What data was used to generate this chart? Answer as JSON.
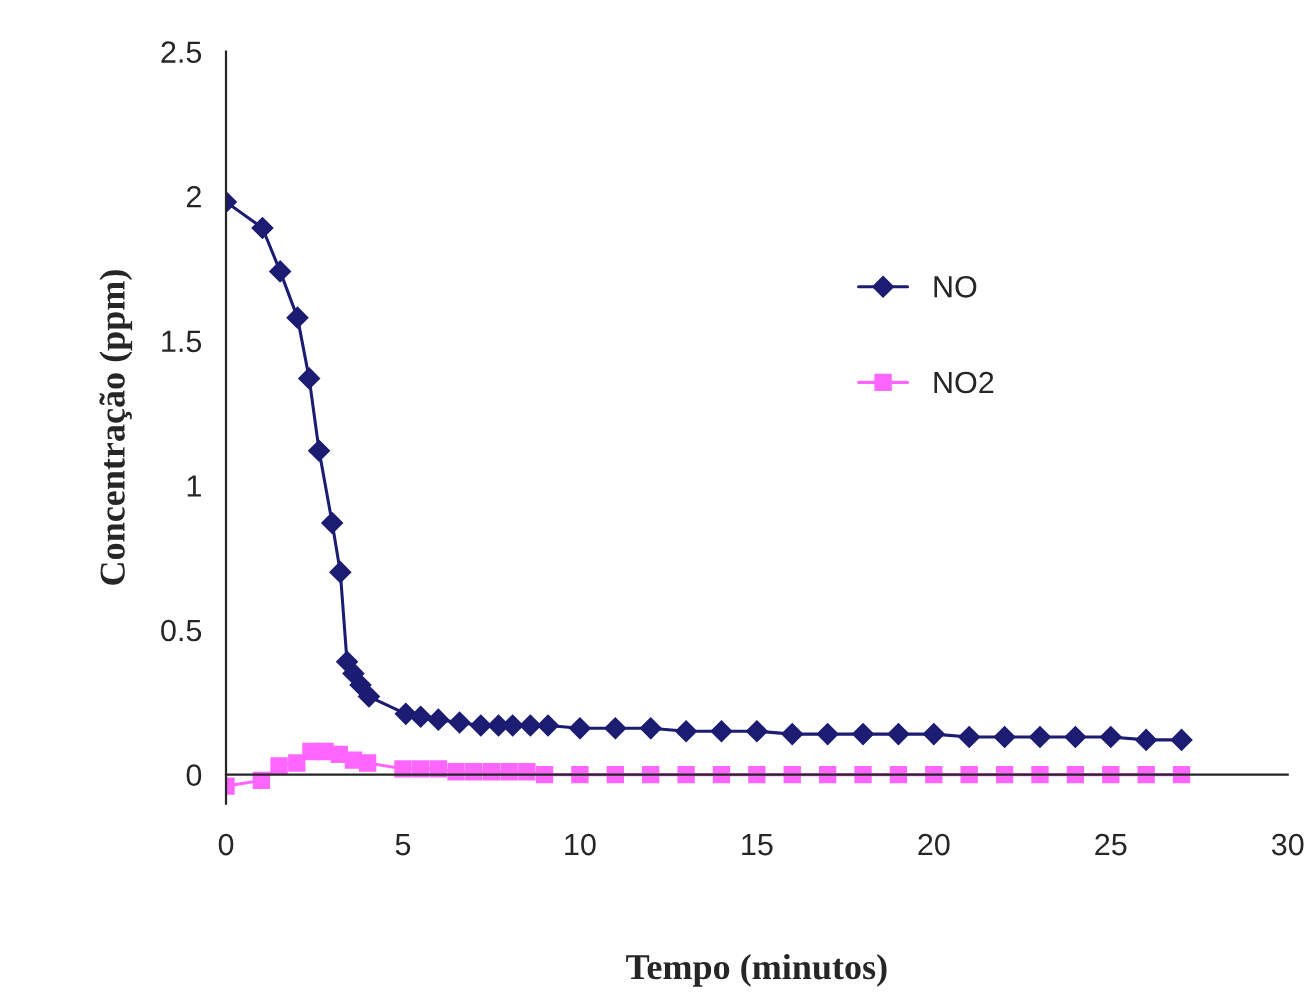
{
  "chart_data": {
    "type": "line",
    "xlabel": "Tempo (minutos)",
    "ylabel": "Concentração (ppm)",
    "xlim": [
      0,
      30
    ],
    "xticks": [
      0,
      5,
      10,
      15,
      20,
      25,
      30
    ],
    "ylim": [
      -0.1,
      2.5
    ],
    "yticks": [
      0,
      0.5,
      1,
      1.5,
      2,
      2.5
    ],
    "grid": false,
    "legend": "right",
    "line_style": "solid",
    "series": [
      {
        "name": "NO",
        "color": "#1c1c72",
        "marker": "diamond",
        "x": [
          0,
          1.03,
          1.53,
          2.02,
          2.35,
          2.63,
          3.0,
          3.23,
          3.42,
          3.6,
          3.8,
          4.04,
          5.08,
          5.5,
          6.0,
          6.6,
          7.2,
          7.7,
          8.1,
          8.6,
          9.1,
          10,
          11,
          12,
          13,
          14,
          15,
          16,
          17,
          18,
          19,
          20,
          21,
          22,
          23,
          24,
          25,
          26,
          27
        ],
        "values": [
          1.98,
          1.89,
          1.74,
          1.58,
          1.37,
          1.12,
          0.87,
          0.7,
          0.39,
          0.35,
          0.31,
          0.27,
          0.21,
          0.2,
          0.19,
          0.18,
          0.17,
          0.17,
          0.17,
          0.17,
          0.17,
          0.16,
          0.16,
          0.16,
          0.15,
          0.15,
          0.15,
          0.14,
          0.14,
          0.14,
          0.14,
          0.14,
          0.13,
          0.13,
          0.13,
          0.13,
          0.13,
          0.12,
          0.12
        ]
      },
      {
        "name": "NO2",
        "color": "#ff66ff",
        "marker": "square",
        "x": [
          0,
          1,
          1.5,
          2,
          2.4,
          2.8,
          3.2,
          3.6,
          4.0,
          5.0,
          5.5,
          6.0,
          6.5,
          7.0,
          7.5,
          8.0,
          8.5,
          9.0,
          10,
          11,
          12,
          13,
          14,
          15,
          16,
          17,
          18,
          19,
          20,
          21,
          22,
          23,
          24,
          25,
          26,
          27
        ],
        "values": [
          -0.04,
          -0.02,
          0.03,
          0.04,
          0.08,
          0.08,
          0.07,
          0.05,
          0.04,
          0.02,
          0.02,
          0.02,
          0.01,
          0.01,
          0.01,
          0.01,
          0.01,
          0.0,
          0.0,
          0.0,
          0.0,
          0.0,
          0.0,
          0.0,
          0.0,
          0.0,
          0.0,
          0.0,
          0.0,
          0.0,
          0.0,
          0.0,
          0.0,
          0.0,
          0.0,
          0.0
        ]
      }
    ]
  }
}
